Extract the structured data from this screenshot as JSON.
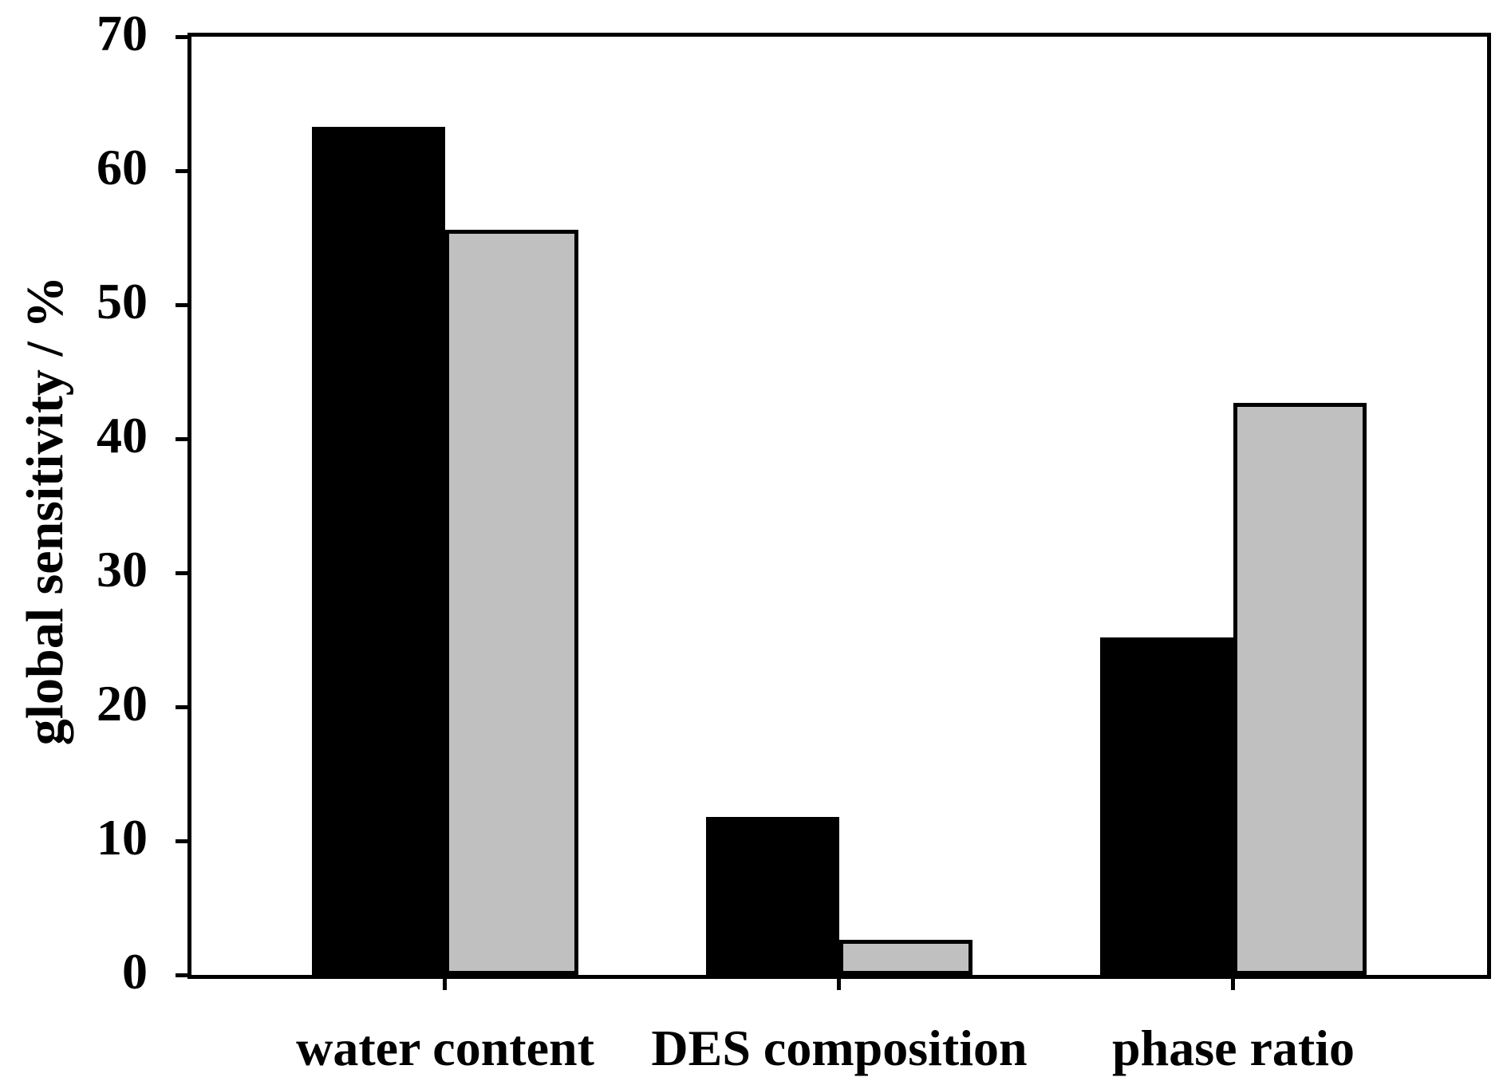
{
  "figure": {
    "background": "#ffffff",
    "frame_color": "#000000"
  },
  "chart_data": {
    "type": "bar",
    "title": "",
    "xlabel": "",
    "ylabel": "global sensitivity / %",
    "categories": [
      "water content",
      "DES composition",
      "phase ratio"
    ],
    "series": [
      {
        "name": "black-bars",
        "color": "#000000",
        "values": [
          63.3,
          11.8,
          25.2
        ]
      },
      {
        "name": "gray-bars",
        "color": "#c0c0c0",
        "values": [
          55.6,
          2.6,
          42.7
        ]
      }
    ],
    "ylim": [
      0,
      70
    ],
    "yticks": [
      0,
      10,
      20,
      30,
      40,
      50,
      60,
      70
    ],
    "grid": false,
    "legend": "none",
    "bar_border_color": "#000000"
  }
}
